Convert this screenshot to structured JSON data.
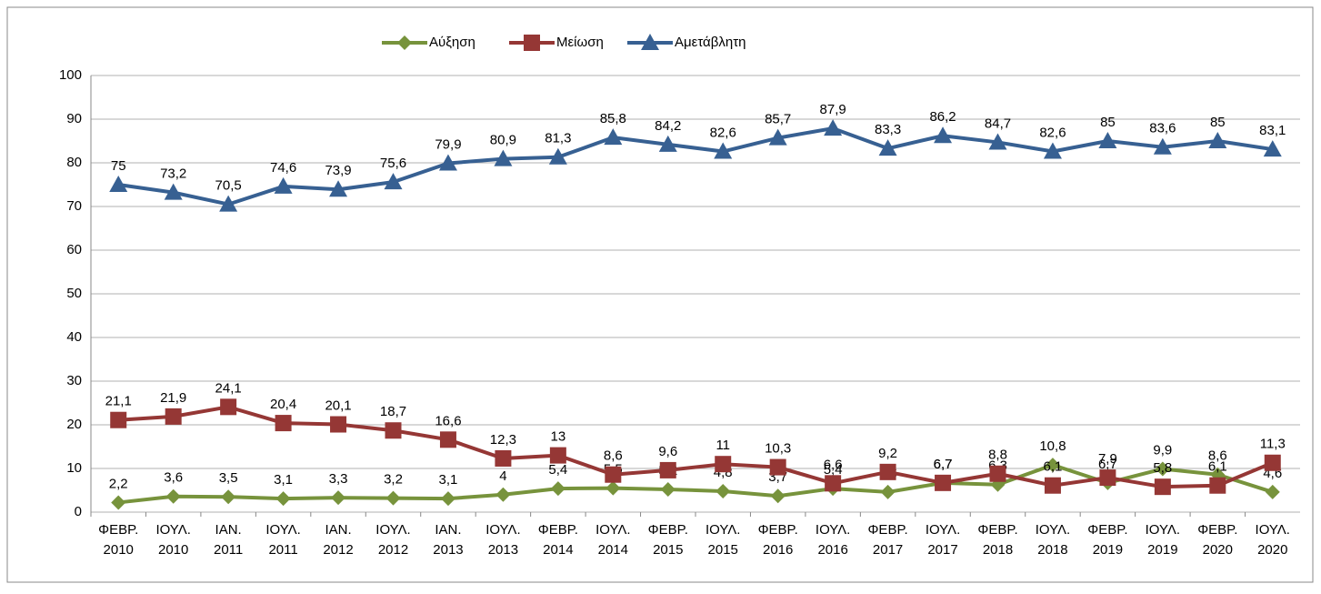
{
  "chart_data": {
    "type": "line",
    "categories": [
      "ΦΕΒΡ. 2010",
      "ΙΟΥΛ. 2010",
      "ΙΑΝ. 2011",
      "ΙΟΥΛ. 2011",
      "ΙΑΝ. 2012",
      "ΙΟΥΛ. 2012",
      "ΙΑΝ. 2013",
      "ΙΟΥΛ. 2013",
      "ΦΕΒΡ. 2014",
      "ΙΟΥΛ. 2014",
      "ΦΕΒΡ. 2015",
      "ΙΟΥΛ. 2015",
      "ΦΕΒΡ. 2016",
      "ΙΟΥΛ. 2016",
      "ΦΕΒΡ. 2017",
      "ΙΟΥΛ. 2017",
      "ΦΕΒΡ. 2018",
      "ΙΟΥΛ. 2018",
      "ΦΕΒΡ. 2019",
      "ΙΟΥΛ. 2019",
      "ΦΕΒΡ. 2020",
      "ΙΟΥΛ. 2020"
    ],
    "series": [
      {
        "name": "Αύξηση",
        "color": "#77933c",
        "marker": "diamond",
        "values": [
          2.2,
          3.6,
          3.5,
          3.1,
          3.3,
          3.2,
          3.1,
          4,
          5.4,
          5.5,
          5.2,
          4.8,
          3.7,
          5.4,
          4.6,
          6.7,
          6.3,
          10.8,
          6.7,
          9.9,
          8.6,
          4.6
        ],
        "value_labels": [
          "2,2",
          "3,6",
          "3,5",
          "3,1",
          "3,3",
          "3,2",
          "3,1",
          "4",
          "5,4",
          "5,5",
          "5,2",
          "4,8",
          "3,7",
          "5,4",
          "4,6",
          "6,7",
          "6,3",
          "10,8",
          "6,7",
          "9,9",
          "8,6",
          "4,6"
        ]
      },
      {
        "name": "Μείωση",
        "color": "#953735",
        "marker": "square",
        "values": [
          21.1,
          21.9,
          24.1,
          20.4,
          20.1,
          18.7,
          16.6,
          12.3,
          13,
          8.6,
          9.6,
          11,
          10.3,
          6.6,
          9.2,
          6.7,
          8.8,
          6.1,
          7.9,
          5.8,
          6.1,
          11.3
        ],
        "value_labels": [
          "21,1",
          "21,9",
          "24,1",
          "20,4",
          "20,1",
          "18,7",
          "16,6",
          "12,3",
          "13",
          "8,6",
          "9,6",
          "11",
          "10,3",
          "6,6",
          "9,2",
          "6,7",
          "8,8",
          "6,1",
          "7,9",
          "5,8",
          "6,1",
          "11,3"
        ]
      },
      {
        "name": "Αμετάβλητη",
        "color": "#376092",
        "marker": "triangle",
        "values": [
          75,
          73.2,
          70.5,
          74.6,
          73.9,
          75.6,
          79.9,
          80.9,
          81.3,
          85.8,
          84.2,
          82.6,
          85.7,
          87.9,
          83.3,
          86.2,
          84.7,
          82.6,
          85,
          83.6,
          85,
          83.1
        ],
        "value_labels": [
          "75",
          "73,2",
          "70,5",
          "74,6",
          "73,9",
          "75,6",
          "79,9",
          "80,9",
          "81,3",
          "85,8",
          "84,2",
          "82,6",
          "85,7",
          "87,9",
          "83,3",
          "86,2",
          "84,7",
          "82,6",
          "85",
          "83,6",
          "85",
          "83,1"
        ]
      }
    ],
    "ylim": [
      0,
      100
    ],
    "yticks": [
      0,
      10,
      20,
      30,
      40,
      50,
      60,
      70,
      80,
      90,
      100
    ],
    "grid": true,
    "legend": "top"
  }
}
